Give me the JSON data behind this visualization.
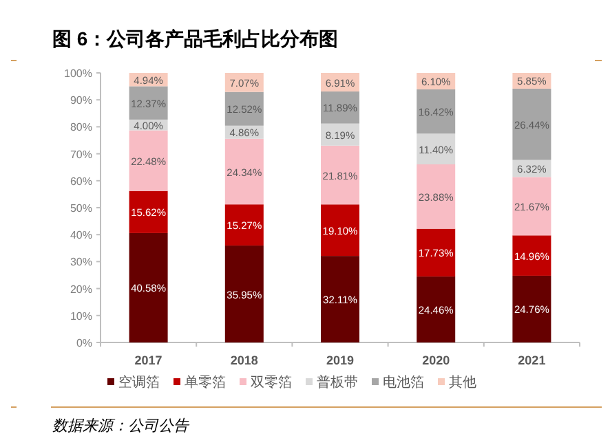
{
  "chart_data": {
    "type": "bar",
    "stacked": true,
    "title": "图 6：公司各产品毛利占比分布图",
    "categories": [
      "2017",
      "2018",
      "2019",
      "2020",
      "2021"
    ],
    "series": [
      {
        "name": "空调箔",
        "color": "#660000",
        "values": [
          40.58,
          35.95,
          32.11,
          24.46,
          24.76
        ],
        "value_labels": [
          "40.58%",
          "35.95%",
          "32.11%",
          "24.46%",
          "24.76%"
        ]
      },
      {
        "name": "单零箔",
        "color": "#c00000",
        "values": [
          15.62,
          15.27,
          19.1,
          17.73,
          14.96
        ],
        "value_labels": [
          "15.62%",
          "15.27%",
          "19.10%",
          "17.73%",
          "14.96%"
        ]
      },
      {
        "name": "双零箔",
        "color": "#f8bcc4",
        "values": [
          22.48,
          24.34,
          21.81,
          23.88,
          21.67
        ],
        "value_labels": [
          "22.48%",
          "24.34%",
          "21.81%",
          "23.88%",
          "21.67%"
        ]
      },
      {
        "name": "普板带",
        "color": "#d9d9d9",
        "values": [
          4.0,
          4.86,
          8.19,
          11.4,
          6.32
        ],
        "value_labels": [
          "4.00%",
          "4.86%",
          "8.19%",
          "11.40%",
          "6.32%"
        ]
      },
      {
        "name": "电池箔",
        "color": "#a6a6a6",
        "values": [
          12.37,
          12.52,
          11.89,
          16.42,
          26.44
        ],
        "value_labels": [
          "12.37%",
          "12.52%",
          "11.89%",
          "16.42%",
          "26.44%"
        ]
      },
      {
        "name": "其他",
        "color": "#f8cbbc",
        "values": [
          4.94,
          7.07,
          6.91,
          6.1,
          5.85
        ],
        "value_labels": [
          "4.94%",
          "7.07%",
          "6.91%",
          "6.10%",
          "5.85%"
        ]
      }
    ],
    "ylim": [
      0,
      100
    ],
    "yticks": [
      {
        "value": 0,
        "label": "0%"
      },
      {
        "value": 10,
        "label": "10%"
      },
      {
        "value": 20,
        "label": "20%"
      },
      {
        "value": 30,
        "label": "30%"
      },
      {
        "value": 40,
        "label": "40%"
      },
      {
        "value": 50,
        "label": "50%"
      },
      {
        "value": 60,
        "label": "60%"
      },
      {
        "value": 70,
        "label": "70%"
      },
      {
        "value": 80,
        "label": "80%"
      },
      {
        "value": 90,
        "label": "90%"
      },
      {
        "value": 100,
        "label": "100%"
      }
    ],
    "legend": "bottom",
    "annotations": [
      "数据来源：公司公告"
    ]
  }
}
